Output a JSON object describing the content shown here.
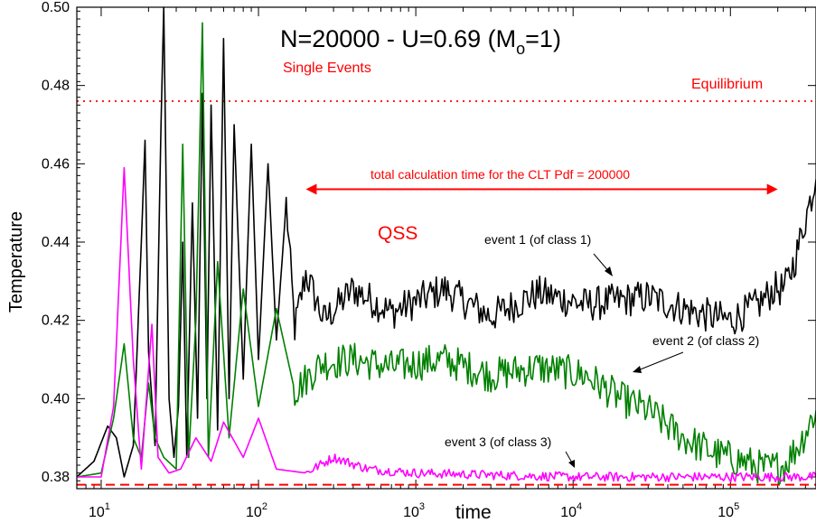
{
  "chart_data": {
    "type": "line",
    "title": "N=20000 - U=0.69    (M",
    "title_sub": "o",
    "title_tail": "=1)",
    "subtitle": "Single Events",
    "xlabel": "time",
    "ylabel": "Temperature",
    "x_scale": "log",
    "xlim": [
      7,
      350000
    ],
    "ylim": [
      0.377,
      0.5
    ],
    "x_ticks": [
      {
        "value": 10,
        "base": "10",
        "exp": "1"
      },
      {
        "value": 100,
        "base": "10",
        "exp": "2"
      },
      {
        "value": 1000,
        "base": "10",
        "exp": "3"
      },
      {
        "value": 10000,
        "base": "10",
        "exp": "4"
      },
      {
        "value": 100000,
        "base": "10",
        "exp": "5"
      }
    ],
    "y_ticks": [
      {
        "value": 0.38,
        "label": "0.38"
      },
      {
        "value": 0.4,
        "label": "0.40"
      },
      {
        "value": 0.42,
        "label": "0.42"
      },
      {
        "value": 0.44,
        "label": "0.44"
      },
      {
        "value": 0.46,
        "label": "0.46"
      },
      {
        "value": 0.48,
        "label": "0.48"
      },
      {
        "value": 0.5,
        "label": "0.50"
      }
    ],
    "reference_lines": [
      {
        "label": "Equilibrium",
        "y": 0.476,
        "style": "dotted",
        "color": "#ff0000"
      },
      {
        "label": "",
        "y": 0.378,
        "style": "dashed",
        "color": "#ff0000"
      }
    ],
    "annotations": {
      "qss": "QSS",
      "calc_time": "total calculation time for the CLT Pdf = 200000",
      "calc_time_range": [
        200,
        200000
      ],
      "calc_time_y": 0.4535,
      "event1": "event 1 (of class  1)",
      "event2": "event 2 (of class 2)",
      "event3": "event 3  (of class 3)"
    },
    "series": [
      {
        "color": "#000000",
        "points": [
          [
            7,
            0.38
          ],
          [
            9,
            0.384
          ],
          [
            11,
            0.393
          ],
          [
            12.5,
            0.39
          ],
          [
            14,
            0.38
          ],
          [
            16,
            0.388
          ],
          [
            18,
            0.44
          ],
          [
            19,
            0.466
          ],
          [
            20,
            0.412
          ],
          [
            22,
            0.388
          ],
          [
            24,
            0.47
          ],
          [
            25,
            0.5
          ],
          [
            27,
            0.4
          ],
          [
            29,
            0.385
          ],
          [
            31,
            0.398
          ],
          [
            33,
            0.44
          ],
          [
            35,
            0.385
          ],
          [
            38,
            0.45
          ],
          [
            41,
            0.395
          ],
          [
            44,
            0.478
          ],
          [
            47,
            0.4
          ],
          [
            50,
            0.475
          ],
          [
            55,
            0.392
          ],
          [
            60,
            0.492
          ],
          [
            65,
            0.4
          ],
          [
            70,
            0.47
          ],
          [
            80,
            0.405
          ],
          [
            90,
            0.465
          ],
          [
            100,
            0.41
          ],
          [
            115,
            0.46
          ],
          [
            130,
            0.415
          ],
          [
            150,
            0.45
          ],
          [
            170,
            0.418
          ],
          [
            200,
            0.432
          ],
          [
            260,
            0.42
          ],
          [
            400,
            0.428
          ],
          [
            700,
            0.422
          ],
          [
            1500,
            0.428
          ],
          [
            3000,
            0.421
          ],
          [
            6000,
            0.427
          ],
          [
            12000,
            0.424
          ],
          [
            30000,
            0.426
          ],
          [
            60000,
            0.422
          ],
          [
            100000,
            0.42
          ],
          [
            150000,
            0.424
          ],
          [
            190000,
            0.428
          ],
          [
            220000,
            0.428
          ],
          [
            260000,
            0.436
          ],
          [
            300000,
            0.446
          ],
          [
            350000,
            0.456
          ]
        ]
      },
      {
        "color": "#008000",
        "points": [
          [
            7,
            0.38
          ],
          [
            10,
            0.381
          ],
          [
            12,
            0.395
          ],
          [
            14,
            0.414
          ],
          [
            16,
            0.39
          ],
          [
            18,
            0.385
          ],
          [
            20,
            0.404
          ],
          [
            22,
            0.39
          ],
          [
            25,
            0.385
          ],
          [
            30,
            0.382
          ],
          [
            33,
            0.465
          ],
          [
            36,
            0.385
          ],
          [
            40,
            0.42
          ],
          [
            44,
            0.496
          ],
          [
            48,
            0.385
          ],
          [
            55,
            0.435
          ],
          [
            65,
            0.39
          ],
          [
            80,
            0.428
          ],
          [
            100,
            0.398
          ],
          [
            130,
            0.423
          ],
          [
            170,
            0.402
          ],
          [
            250,
            0.409
          ],
          [
            400,
            0.41
          ],
          [
            700,
            0.408
          ],
          [
            1500,
            0.41
          ],
          [
            3000,
            0.406
          ],
          [
            6000,
            0.408
          ],
          [
            12000,
            0.406
          ],
          [
            20000,
            0.4
          ],
          [
            30000,
            0.397
          ],
          [
            50000,
            0.39
          ],
          [
            80000,
            0.386
          ],
          [
            120000,
            0.384
          ],
          [
            170000,
            0.382
          ],
          [
            220000,
            0.383
          ],
          [
            280000,
            0.389
          ],
          [
            350000,
            0.397
          ]
        ]
      },
      {
        "color": "#ff00ff",
        "points": [
          [
            7,
            0.38
          ],
          [
            10,
            0.38
          ],
          [
            12,
            0.398
          ],
          [
            14,
            0.459
          ],
          [
            16,
            0.41
          ],
          [
            18,
            0.382
          ],
          [
            21,
            0.419
          ],
          [
            23,
            0.385
          ],
          [
            27,
            0.381
          ],
          [
            32,
            0.382
          ],
          [
            40,
            0.39
          ],
          [
            50,
            0.384
          ],
          [
            60,
            0.394
          ],
          [
            80,
            0.385
          ],
          [
            100,
            0.395
          ],
          [
            130,
            0.382
          ],
          [
            200,
            0.381
          ],
          [
            300,
            0.385
          ],
          [
            500,
            0.382
          ],
          [
            1000,
            0.381
          ],
          [
            3000,
            0.3805
          ],
          [
            10000,
            0.38
          ],
          [
            50000,
            0.38
          ],
          [
            350000,
            0.38
          ]
        ]
      }
    ]
  }
}
